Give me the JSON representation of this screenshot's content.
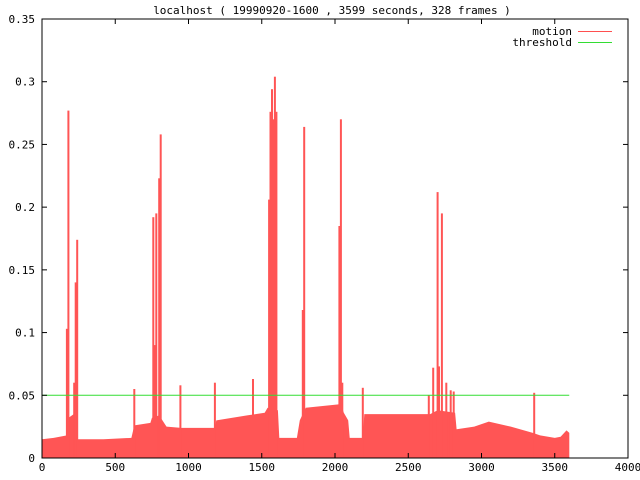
{
  "chart_data": {
    "type": "area",
    "title": "localhost ( 19990920-1600 , 3599 seconds, 328 frames )",
    "xlabel": "",
    "ylabel": "",
    "xlim": [
      0,
      4000
    ],
    "ylim": [
      0,
      0.35
    ],
    "x_ticks": [
      "0",
      "500",
      "1000",
      "1500",
      "2000",
      "2500",
      "3000",
      "3500",
      "4000"
    ],
    "y_ticks": [
      "0",
      "0.05",
      "0.1",
      "0.15",
      "0.2",
      "0.25",
      "0.3",
      "0.35"
    ],
    "grid": false,
    "legend_position": "top-right",
    "legend": [
      {
        "name": "motion",
        "color": "#ff4f4f"
      },
      {
        "name": "threshold",
        "color": "#33dd33"
      }
    ],
    "series": [
      {
        "name": "motion",
        "color": "#ff5555",
        "baseline": [
          [
            0,
            0.015
          ],
          [
            80,
            0.016
          ],
          [
            170,
            0.018
          ],
          [
            180,
            0.032
          ],
          [
            230,
            0.036
          ],
          [
            240,
            0.015
          ],
          [
            420,
            0.015
          ],
          [
            610,
            0.016
          ],
          [
            630,
            0.026
          ],
          [
            740,
            0.028
          ],
          [
            750,
            0.032
          ],
          [
            800,
            0.034
          ],
          [
            850,
            0.025
          ],
          [
            950,
            0.024
          ],
          [
            1180,
            0.024
          ],
          [
            1190,
            0.03
          ],
          [
            1400,
            0.034
          ],
          [
            1520,
            0.036
          ],
          [
            1540,
            0.04
          ],
          [
            1610,
            0.038
          ],
          [
            1620,
            0.016
          ],
          [
            1740,
            0.016
          ],
          [
            1760,
            0.03
          ],
          [
            1800,
            0.04
          ],
          [
            2040,
            0.043
          ],
          [
            2060,
            0.036
          ],
          [
            2090,
            0.03
          ],
          [
            2100,
            0.016
          ],
          [
            2190,
            0.016
          ],
          [
            2200,
            0.035
          ],
          [
            2650,
            0.035
          ],
          [
            2700,
            0.038
          ],
          [
            2820,
            0.036
          ],
          [
            2830,
            0.023
          ],
          [
            2950,
            0.025
          ],
          [
            3050,
            0.029
          ],
          [
            3200,
            0.025
          ],
          [
            3350,
            0.02
          ],
          [
            3400,
            0.018
          ],
          [
            3500,
            0.016
          ],
          [
            3540,
            0.017
          ],
          [
            3580,
            0.022
          ],
          [
            3599,
            0.02
          ]
        ],
        "spikes": [
          [
            170,
            0.103
          ],
          [
            180,
            0.277
          ],
          [
            220,
            0.06
          ],
          [
            230,
            0.14
          ],
          [
            240,
            0.174
          ],
          [
            630,
            0.055
          ],
          [
            760,
            0.192
          ],
          [
            770,
            0.09
          ],
          [
            780,
            0.195
          ],
          [
            800,
            0.223
          ],
          [
            810,
            0.258
          ],
          [
            945,
            0.058
          ],
          [
            1180,
            0.06
          ],
          [
            1440,
            0.063
          ],
          [
            1550,
            0.206
          ],
          [
            1560,
            0.276
          ],
          [
            1570,
            0.294
          ],
          [
            1580,
            0.27
          ],
          [
            1590,
            0.304
          ],
          [
            1600,
            0.276
          ],
          [
            1780,
            0.118
          ],
          [
            1790,
            0.264
          ],
          [
            2030,
            0.185
          ],
          [
            2040,
            0.27
          ],
          [
            2050,
            0.06
          ],
          [
            2190,
            0.056
          ],
          [
            2640,
            0.05
          ],
          [
            2670,
            0.072
          ],
          [
            2700,
            0.212
          ],
          [
            2710,
            0.073
          ],
          [
            2730,
            0.195
          ],
          [
            2760,
            0.06
          ],
          [
            2790,
            0.054
          ],
          [
            2810,
            0.053
          ],
          [
            3360,
            0.052
          ]
        ]
      },
      {
        "name": "threshold",
        "color": "#33dd33",
        "points": [
          [
            0,
            0.05
          ],
          [
            3599,
            0.05
          ]
        ]
      }
    ]
  }
}
